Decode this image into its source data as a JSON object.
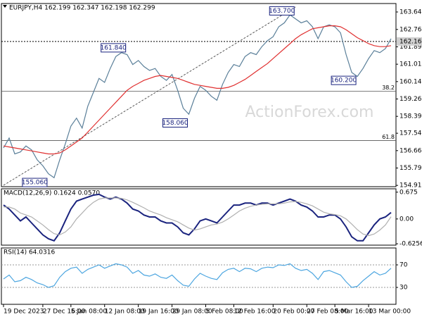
{
  "chart_data": [
    {
      "type": "line",
      "title": "EURJPY,H4 162.199 162.347 162.198 162.299",
      "watermark": "ActionForex.com",
      "xlim": [
        0,
        69
      ],
      "ylim": [
        154.85,
        164.07
      ],
      "yticks": [
        163.645,
        162.765,
        {
          "value": 161.89,
          "label": "161.890"
        },
        161.015,
        {
          "value": 160.14,
          "label": "160.140"
        },
        159.265,
        {
          "value": 158.39,
          "label": "158.390"
        },
        {
          "value": 157.54,
          "label": "157.540"
        },
        156.665,
        {
          "value": 155.79,
          "label": "155.790"
        },
        154.915
      ],
      "xticks": [
        {
          "value": 0,
          "label": "19 Dec 2023"
        },
        {
          "value": 7,
          "label": "27 Dec 16:00"
        },
        {
          "value": 12,
          "label": "5 Jan 08:00"
        },
        {
          "value": 18,
          "label": "12 Jan 08:00"
        },
        {
          "value": 24,
          "label": "19 Jan 16:00"
        },
        {
          "value": 30,
          "label": "29 Jan 08:00"
        },
        {
          "value": 36,
          "label": "5 Feb 08:00"
        },
        {
          "value": 41,
          "label": "12 Feb 16:00"
        },
        {
          "value": 48,
          "label": "20 Feb 00:00"
        },
        {
          "value": 54,
          "label": "27 Feb 08:00"
        },
        {
          "value": 59,
          "label": "5 Mar 16:00"
        },
        {
          "value": 65,
          "label": "13 Mar 00:00"
        }
      ],
      "current_price": {
        "value": 162.16,
        "label": "162.160"
      },
      "levels": [
        {
          "value": 159.66,
          "label": "38.2"
        },
        {
          "value": 157.17,
          "label": "61.8"
        }
      ],
      "trendline": {
        "x": [
          0,
          52
        ],
        "values": [
          154.92,
          163.9
        ]
      },
      "annotations": [
        {
          "x": 52,
          "value": 163.7,
          "label": "163.700"
        },
        {
          "x": 22,
          "value": 161.84,
          "label": "161.840"
        },
        {
          "x": 33,
          "value": 158.06,
          "label": "158.060"
        },
        {
          "x": 8,
          "value": 155.06,
          "label": "155.060"
        },
        {
          "x": 63,
          "value": 160.2,
          "label": "160.200"
        }
      ],
      "series": [
        {
          "color": "#5a7f99",
          "values": [
            156.8,
            157.3,
            156.5,
            156.6,
            156.9,
            156.7,
            156.2,
            155.9,
            155.5,
            155.3,
            156.2,
            157.0,
            157.9,
            158.3,
            157.8,
            158.9,
            159.6,
            160.3,
            160.1,
            160.8,
            161.4,
            161.6,
            161.5,
            161.0,
            161.2,
            160.9,
            160.7,
            160.8,
            160.4,
            160.2,
            160.5,
            159.7,
            158.8,
            158.5,
            159.3,
            159.9,
            159.7,
            159.4,
            159.2,
            160.0,
            160.6,
            161.0,
            160.9,
            161.4,
            161.6,
            161.5,
            161.9,
            162.2,
            162.4,
            162.9,
            163.1,
            163.5,
            163.3,
            163.1,
            163.2,
            162.9,
            162.3,
            162.9,
            163.0,
            162.9,
            162.6,
            161.5,
            160.6,
            160.4,
            160.8,
            161.3,
            161.7,
            161.6,
            161.8,
            162.3
          ]
        },
        {
          "color": "#e03030",
          "values": [
            156.9,
            156.85,
            156.8,
            156.75,
            156.7,
            156.65,
            156.6,
            156.55,
            156.5,
            156.5,
            156.55,
            156.7,
            156.9,
            157.1,
            157.3,
            157.6,
            157.9,
            158.2,
            158.5,
            158.8,
            159.1,
            159.4,
            159.7,
            159.9,
            160.05,
            160.2,
            160.3,
            160.4,
            160.45,
            160.4,
            160.35,
            160.3,
            160.2,
            160.1,
            160.0,
            159.95,
            159.9,
            159.85,
            159.8,
            159.8,
            159.85,
            159.95,
            160.1,
            160.25,
            160.45,
            160.65,
            160.85,
            161.05,
            161.3,
            161.55,
            161.8,
            162.05,
            162.3,
            162.5,
            162.65,
            162.8,
            162.85,
            162.9,
            162.95,
            162.95,
            162.9,
            162.75,
            162.55,
            162.35,
            162.2,
            162.05,
            161.95,
            161.9,
            161.9,
            161.95
          ]
        }
      ]
    },
    {
      "type": "line",
      "title": "MACD(12,26,9) 0.1624 0.0570",
      "xlim": [
        0,
        69
      ],
      "ylim": [
        -0.66,
        0.76
      ],
      "yticks": [
        0.675,
        {
          "value": 0,
          "label": "0.00"
        },
        -0.6256
      ],
      "series": [
        {
          "color": "#1a237e",
          "values": [
            0.35,
            0.25,
            0.1,
            -0.05,
            0.05,
            -0.1,
            -0.25,
            -0.4,
            -0.5,
            -0.55,
            -0.35,
            -0.05,
            0.25,
            0.45,
            0.5,
            0.55,
            0.6,
            0.62,
            0.55,
            0.5,
            0.55,
            0.5,
            0.4,
            0.25,
            0.2,
            0.1,
            0.05,
            0.05,
            -0.05,
            -0.1,
            -0.1,
            -0.2,
            -0.35,
            -0.4,
            -0.25,
            -0.05,
            0,
            -0.05,
            -0.1,
            0.05,
            0.2,
            0.35,
            0.35,
            0.4,
            0.4,
            0.35,
            0.4,
            0.4,
            0.35,
            0.4,
            0.45,
            0.5,
            0.45,
            0.35,
            0.3,
            0.2,
            0.05,
            0.05,
            0.1,
            0.1,
            0.0,
            -0.2,
            -0.45,
            -0.55,
            -0.55,
            -0.35,
            -0.15,
            0.0,
            0.05,
            0.1624
          ]
        },
        {
          "color": "#b0b0b0",
          "values": [
            0.3,
            0.3,
            0.25,
            0.15,
            0.1,
            0.05,
            -0.05,
            -0.15,
            -0.27,
            -0.37,
            -0.4,
            -0.33,
            -0.2,
            0,
            0.15,
            0.3,
            0.42,
            0.5,
            0.53,
            0.53,
            0.53,
            0.52,
            0.48,
            0.42,
            0.35,
            0.28,
            0.2,
            0.15,
            0.1,
            0.03,
            -0.02,
            -0.07,
            -0.15,
            -0.23,
            -0.28,
            -0.25,
            -0.2,
            -0.15,
            -0.13,
            -0.08,
            0.0,
            0.1,
            0.2,
            0.27,
            0.32,
            0.35,
            0.37,
            0.38,
            0.38,
            0.38,
            0.4,
            0.43,
            0.44,
            0.42,
            0.38,
            0.33,
            0.25,
            0.17,
            0.13,
            0.11,
            0.08,
            0.0,
            -0.13,
            -0.27,
            -0.38,
            -0.42,
            -0.38,
            -0.28,
            -0.15,
            0.057
          ]
        }
      ]
    },
    {
      "type": "line",
      "title": "RSI(14) 64.0316",
      "xlim": [
        0,
        69
      ],
      "ylim": [
        0,
        100
      ],
      "yticks": [
        70,
        30
      ],
      "series": [
        {
          "color": "#4da6e0",
          "values": [
            45,
            52,
            40,
            42,
            48,
            44,
            38,
            35,
            30,
            33,
            48,
            58,
            64,
            66,
            55,
            62,
            66,
            70,
            64,
            68,
            72,
            70,
            66,
            55,
            60,
            52,
            50,
            54,
            48,
            46,
            52,
            42,
            34,
            32,
            45,
            55,
            50,
            46,
            44,
            56,
            62,
            64,
            58,
            64,
            63,
            58,
            64,
            66,
            65,
            70,
            69,
            72,
            64,
            60,
            62,
            55,
            44,
            58,
            60,
            56,
            52,
            40,
            30,
            32,
            42,
            50,
            58,
            52,
            55,
            64.0316
          ]
        }
      ]
    }
  ]
}
